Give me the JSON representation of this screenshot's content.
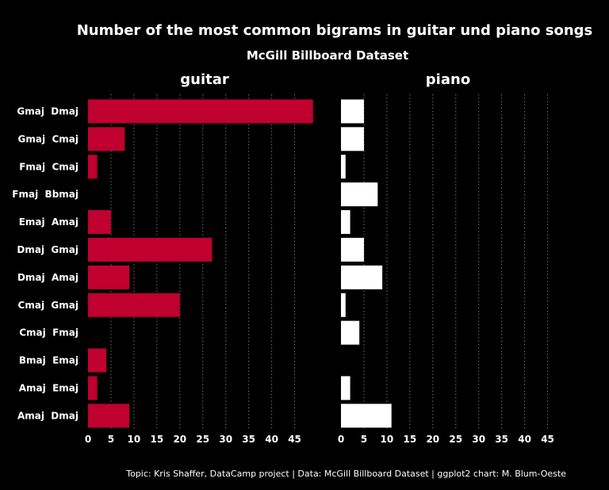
{
  "chart_data": {
    "type": "bar",
    "orientation": "horizontal",
    "title": "Number of the most common bigrams in guitar und piano songs",
    "subtitle": "McGill Billboard Dataset",
    "caption": "Topic: Kris Shaffer, DataCamp project | Data: McGill Billboard Dataset | ggplot2 chart: M. Blum-Oeste",
    "categories": [
      "Gmaj  Dmaj",
      "Gmaj  Cmaj",
      "Fmaj  Cmaj",
      "Fmaj  Bbmaj",
      "Emaj  Amaj",
      "Dmaj  Gmaj",
      "Dmaj  Amaj",
      "Cmaj  Gmaj",
      "Cmaj  Fmaj",
      "Bmaj  Emaj",
      "Amaj  Emaj",
      "Amaj  Dmaj"
    ],
    "series": [
      {
        "name": "guitar",
        "color": "#C0002F",
        "values": [
          49,
          8,
          2,
          0,
          5,
          27,
          9,
          20,
          0,
          4,
          2,
          9
        ]
      },
      {
        "name": "piano",
        "color": "#FFFFFF",
        "values": [
          5,
          5,
          1,
          8,
          2,
          5,
          9,
          1,
          4,
          0,
          2,
          11
        ]
      }
    ],
    "xticks": [
      0,
      5,
      10,
      15,
      20,
      25,
      30,
      35,
      40,
      45
    ],
    "xlim": [
      0,
      49
    ],
    "grid": "vertical dotted",
    "background": "#000000",
    "legend": "none (facet titles)"
  }
}
